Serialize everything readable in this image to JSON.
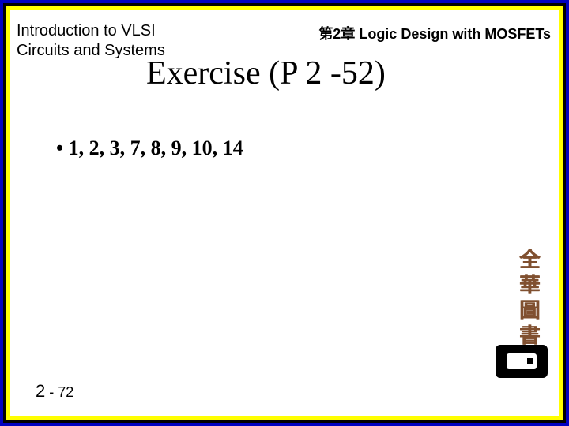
{
  "header": {
    "left": "Introduction to VLSI Circuits and Systems",
    "right": "第2章 Logic Design with MOSFETs"
  },
  "title": "Exercise (P 2 -52)",
  "bullet": "• 1, 2, 3, 7, 8, 9, 10, 14",
  "publisher": "全華圖書",
  "page": {
    "chapter": "2",
    "sep": " - ",
    "num": "72"
  },
  "colors": {
    "outer_bg": "#0000c0",
    "slide_bg": "#ffff00",
    "inner_bg": "#ffffff",
    "border": "#000000",
    "text": "#000000",
    "publisher_text": "#805030"
  }
}
